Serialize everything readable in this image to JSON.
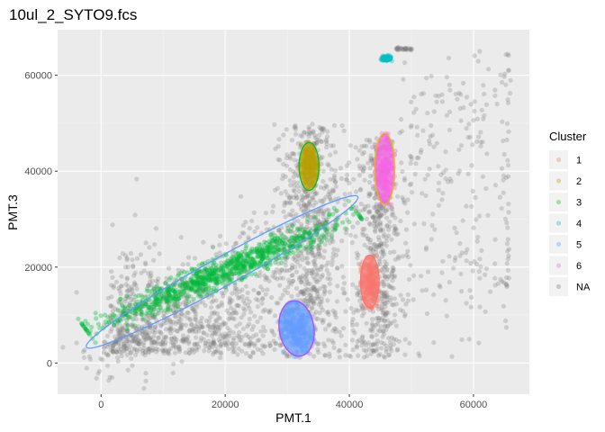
{
  "chart_data": {
    "type": "scatter",
    "title": "10ul_2_SYTO9.fcs",
    "xlabel": "PMT.1",
    "ylabel": "PMT.3",
    "xlim": [
      -7000,
      69000
    ],
    "ylim": [
      -6500,
      69500
    ],
    "x_ticks": [
      0,
      20000,
      40000,
      60000
    ],
    "y_ticks": [
      0,
      20000,
      40000,
      60000
    ],
    "grid": true,
    "legend_position": "right",
    "legend_title": "Cluster",
    "colors": {
      "1": "#F8766D",
      "2": "#B79F00",
      "3": "#00BA38",
      "4": "#00BFC4",
      "5": "#619CFF",
      "6": "#F564E3",
      "NA": "#7F7F7F"
    },
    "legend": [
      {
        "key": "1",
        "label": "1",
        "color": "#F8766D"
      },
      {
        "key": "2",
        "label": "2",
        "color": "#B79F00"
      },
      {
        "key": "3",
        "label": "3",
        "color": "#00BA38"
      },
      {
        "key": "4",
        "label": "4",
        "color": "#00BFC4"
      },
      {
        "key": "5",
        "label": "5",
        "color": "#619CFF"
      },
      {
        "key": "6",
        "label": "6",
        "color": "#F564E3"
      },
      {
        "key": "NA",
        "label": "NA",
        "color": "#7F7F7F"
      }
    ],
    "clusters": [
      {
        "name": "1",
        "cx": 43300,
        "cy": 17000,
        "rx": 1500,
        "ry": 5500,
        "count": 140,
        "ellipse_color": "#F8766D",
        "angle": 0
      },
      {
        "name": "2",
        "cx": 33500,
        "cy": 41000,
        "rx": 1600,
        "ry": 5000,
        "count": 140,
        "ellipse_color": "#00BA38",
        "angle": 0
      },
      {
        "name": "3",
        "cx": 19500,
        "cy": 19000,
        "rx": 25000,
        "ry": 3000,
        "count": 900,
        "ellipse_color": "#619CFF",
        "angle": 29
      },
      {
        "name": "4",
        "cx": 46000,
        "cy": 63500,
        "rx": 900,
        "ry": 700,
        "count": 40,
        "ellipse_color": "#00BFC4",
        "angle": 0
      },
      {
        "name": "5",
        "cx": 31500,
        "cy": 7200,
        "rx": 2800,
        "ry": 5800,
        "count": 220,
        "ellipse_color": "#B24BF3",
        "angle": 8
      },
      {
        "name": "6",
        "cx": 45700,
        "cy": 40500,
        "rx": 1600,
        "ry": 7400,
        "count": 160,
        "ellipse_color": "#E7B800",
        "angle": 0
      }
    ],
    "na_points": 2600
  }
}
